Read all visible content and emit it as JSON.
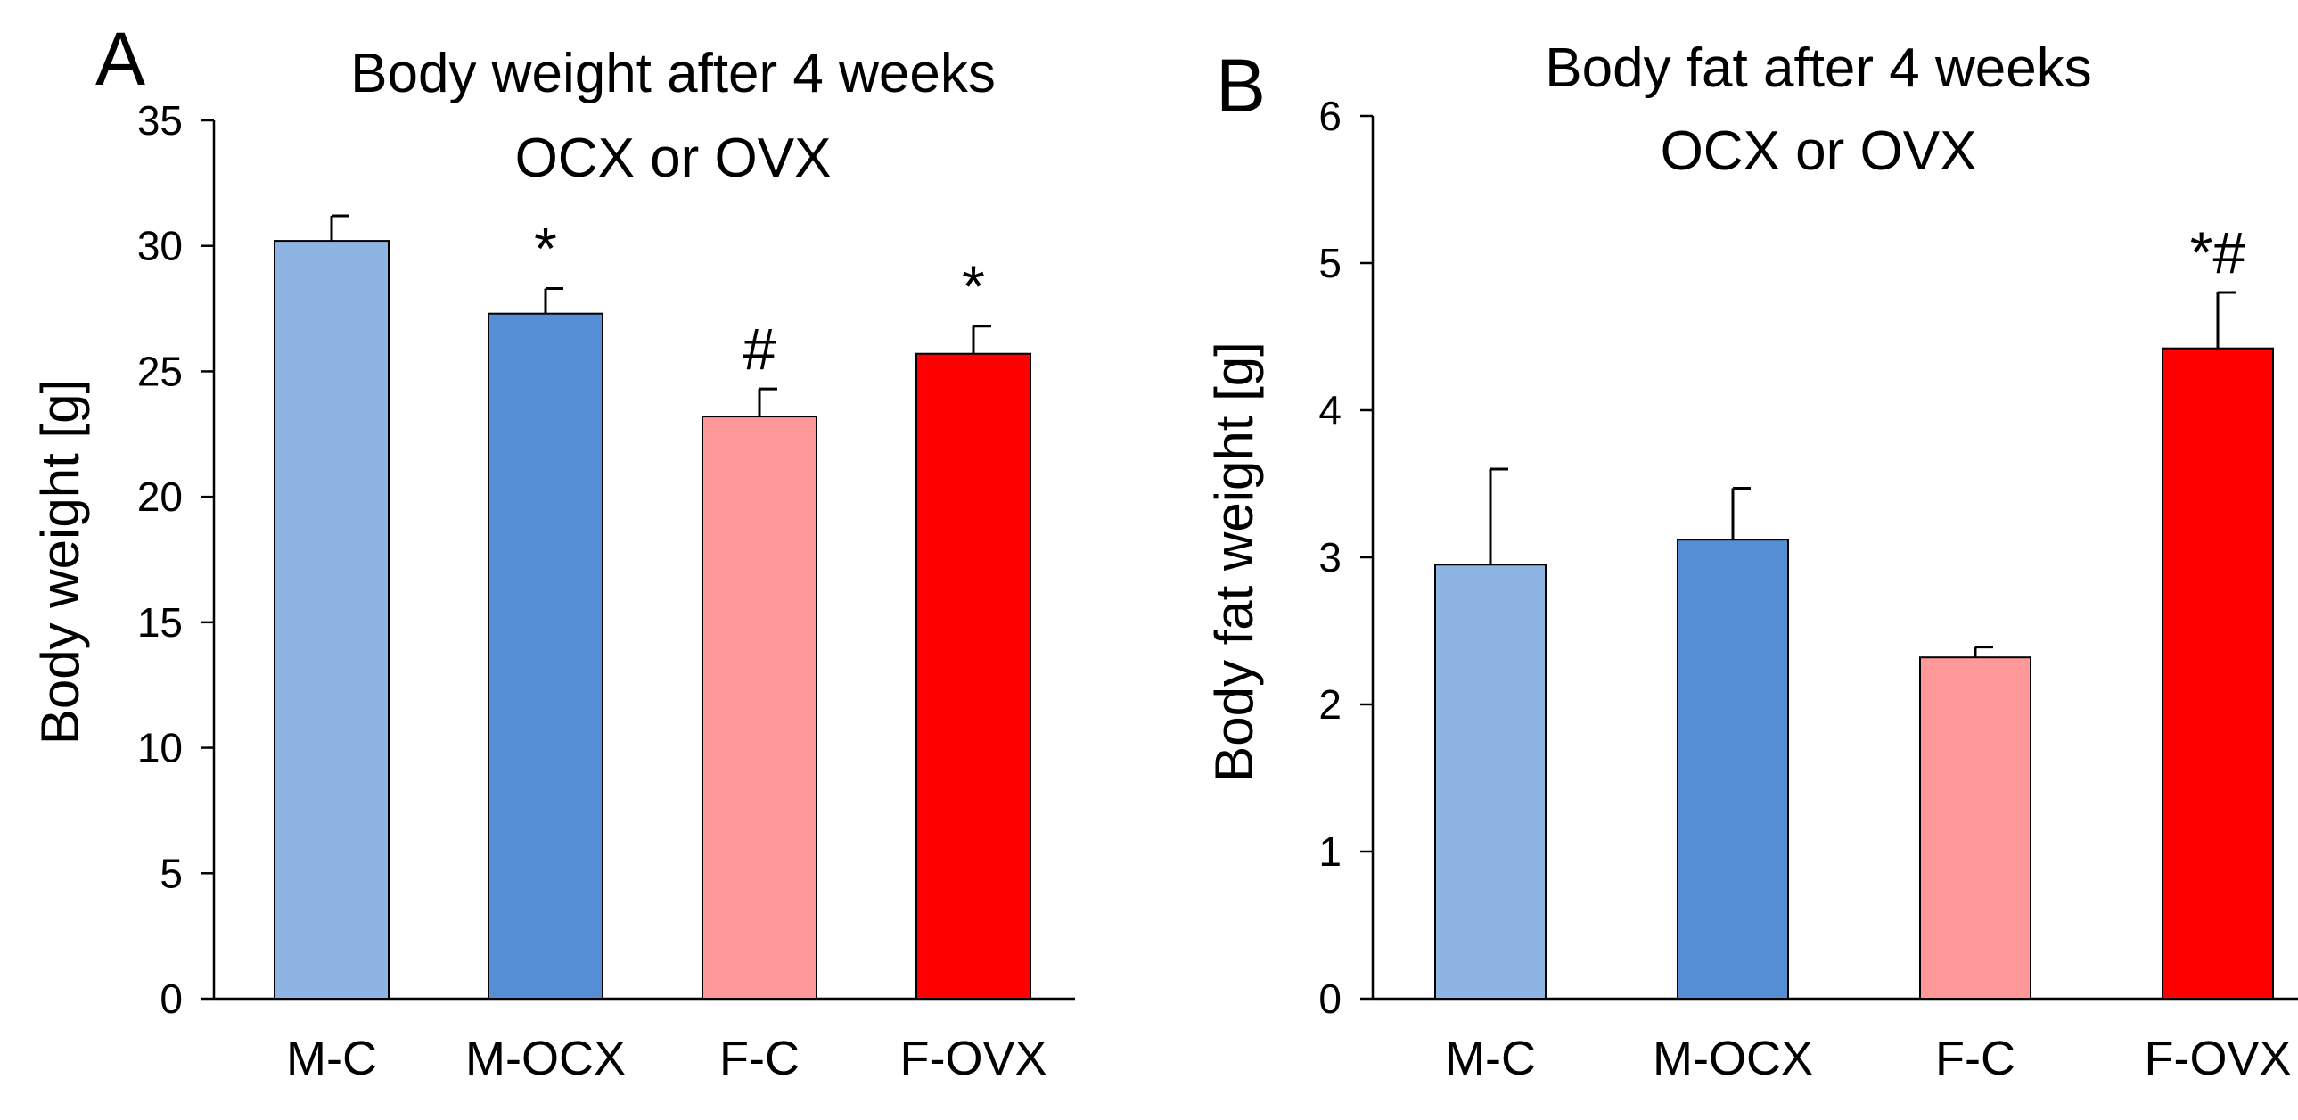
{
  "chart_data": [
    {
      "type": "bar",
      "panel": "A",
      "title_lines": [
        "Body weight after 4 weeks",
        "OCX or OVX"
      ],
      "xlabel": "",
      "ylabel": "Body weight [g]",
      "ylim": [
        0,
        35
      ],
      "yticks": [
        0,
        5,
        10,
        15,
        20,
        25,
        30,
        35
      ],
      "categories": [
        "M-C",
        "M-OCX",
        "F-C",
        "F-OVX"
      ],
      "values": [
        30.2,
        27.3,
        23.2,
        25.7
      ],
      "errors": [
        1.0,
        1.0,
        1.1,
        1.1
      ],
      "colors": [
        "#8eb4e3",
        "#558ed5",
        "#ff9999",
        "#ff0000"
      ],
      "annotations": [
        "",
        "*",
        "#",
        "*"
      ],
      "grid": false
    },
    {
      "type": "bar",
      "panel": "B",
      "title_lines": [
        "Body fat after 4 weeks",
        "OCX or OVX"
      ],
      "xlabel": "",
      "ylabel": "Body fat weight [g]",
      "ylim": [
        0,
        6
      ],
      "yticks": [
        0,
        1,
        2,
        3,
        4,
        5,
        6
      ],
      "categories": [
        "M-C",
        "M-OCX",
        "F-C",
        "F-OVX"
      ],
      "values": [
        2.95,
        3.12,
        2.32,
        4.42
      ],
      "errors": [
        0.65,
        0.35,
        0.07,
        0.38
      ],
      "colors": [
        "#8eb4e3",
        "#558ed5",
        "#ff9999",
        "#ff0000"
      ],
      "annotations": [
        "",
        "",
        "",
        "*#"
      ],
      "grid": false
    }
  ]
}
